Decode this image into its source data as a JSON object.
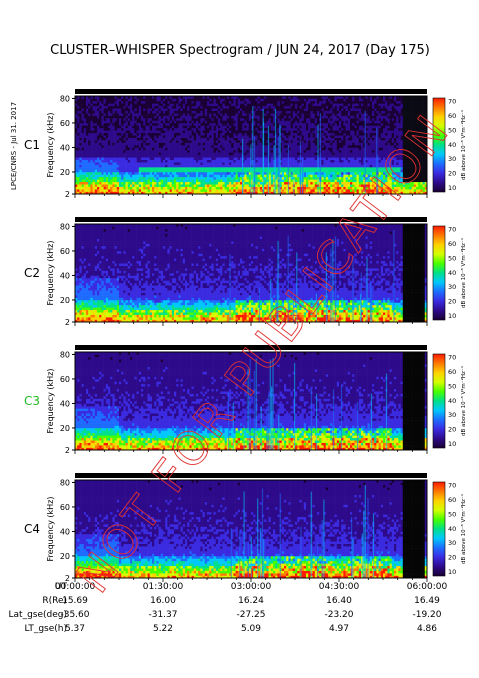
{
  "chart_data": {
    "type": "heatmap",
    "title": "CLUSTER–WHISPER Spectrogram / JUN 24, 2017 (Day 175)",
    "side_label": "LPCE/CNRS - Jul 31. 2017",
    "watermark": "NOT FOR PUBLICATION",
    "colorbar": {
      "ticks": [
        70,
        60,
        50,
        40,
        30,
        20,
        10
      ],
      "label": "dB above 10⁻⁸ V²m⁻²Hz⁻¹",
      "colors": [
        "#1a0033",
        "#2d0a8a",
        "#3a2ae0",
        "#1e6cff",
        "#00c8ff",
        "#00e08a",
        "#46ff00",
        "#d2ff00",
        "#ffd200",
        "#ff7a00",
        "#ff1a00"
      ]
    },
    "panels": [
      {
        "name": "C1",
        "label_color": "#000000",
        "ylabel": "Frequency (kHz)",
        "yticks": [
          80,
          60,
          40,
          20,
          2
        ]
      },
      {
        "name": "C2",
        "label_color": "#000000",
        "ylabel": "Frequency (kHz)",
        "yticks": [
          80,
          60,
          40,
          20,
          2
        ]
      },
      {
        "name": "C3",
        "label_color": "#22bb22",
        "ylabel": "Frequency (kHz)",
        "yticks": [
          80,
          60,
          40,
          20,
          2
        ]
      },
      {
        "name": "C4",
        "label_color": "#000000",
        "ylabel": "Frequency (kHz)",
        "yticks": [
          80,
          60,
          40,
          20,
          2
        ]
      }
    ],
    "xaxis": {
      "rows": [
        {
          "label": "UT",
          "values": [
            "00:00:00",
            "01:30:00",
            "03:00:00",
            "04:30:00",
            "06:00:00"
          ]
        },
        {
          "label": "R(Re)",
          "values": [
            "15.69",
            "16.00",
            "16.24",
            "16.40",
            "16.49"
          ]
        },
        {
          "label": "Lat_gse(deg)",
          "values": [
            "-35.60",
            "-31.37",
            "-27.25",
            "-23.20",
            "-19.20"
          ]
        },
        {
          "label": "LT_gse(h)",
          "values": [
            "5.37",
            "5.22",
            "5.09",
            "4.97",
            "4.86"
          ]
        }
      ]
    }
  }
}
